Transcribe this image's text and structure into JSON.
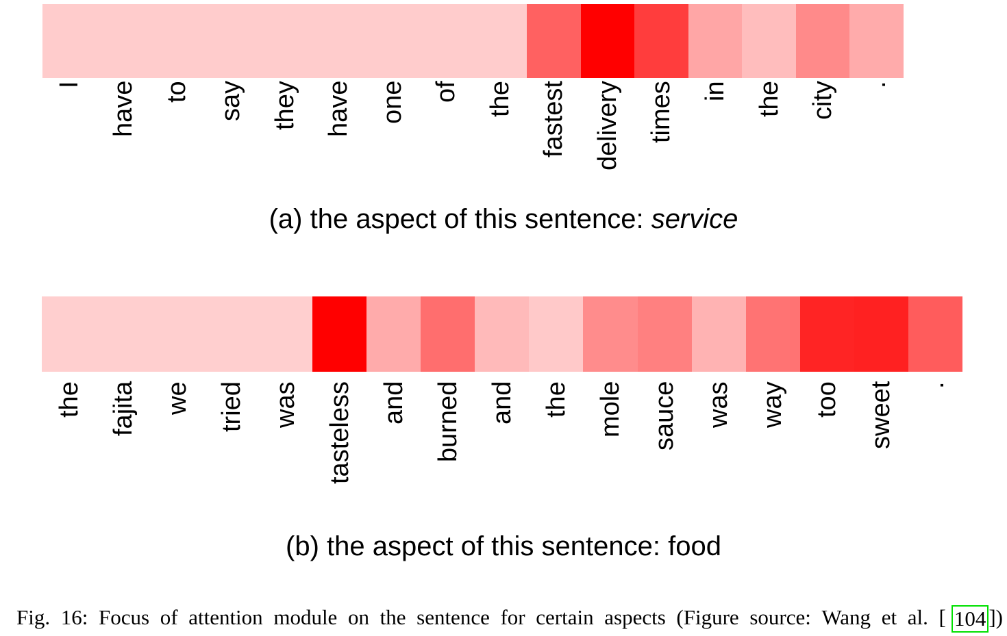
{
  "panels": [
    {
      "tokens": [
        "I",
        "have",
        "to",
        "say",
        "they",
        "have",
        "one",
        "of",
        "the",
        "fastest",
        "delivery",
        "times",
        "in",
        "the",
        "city",
        "."
      ],
      "attention": [
        0.2,
        0.2,
        0.2,
        0.2,
        0.2,
        0.2,
        0.2,
        0.2,
        0.2,
        0.62,
        1.0,
        0.76,
        0.35,
        0.26,
        0.46,
        0.33
      ],
      "caption_prefix": "(a) the aspect of this sentence: ",
      "caption_aspect": "service"
    },
    {
      "tokens": [
        "the",
        "fajita",
        "we",
        "tried",
        "was",
        "tasteless",
        "and",
        "burned",
        "and",
        "the",
        "mole",
        "sauce",
        "was",
        "way",
        "too",
        "sweet",
        "."
      ],
      "attention": [
        0.19,
        0.19,
        0.19,
        0.19,
        0.19,
        1.0,
        0.33,
        0.57,
        0.27,
        0.21,
        0.45,
        0.5,
        0.3,
        0.55,
        0.86,
        0.87,
        0.64
      ],
      "caption_prefix": "(b) the aspect of this sentence: ",
      "caption_aspect": "food"
    }
  ],
  "heat_color": "#ff0000",
  "figure_caption": {
    "text": "Fig. 16: Focus of attention module on the sentence for certain aspects (Figure source: Wang et al. [",
    "ref": "104",
    "close": "])"
  }
}
